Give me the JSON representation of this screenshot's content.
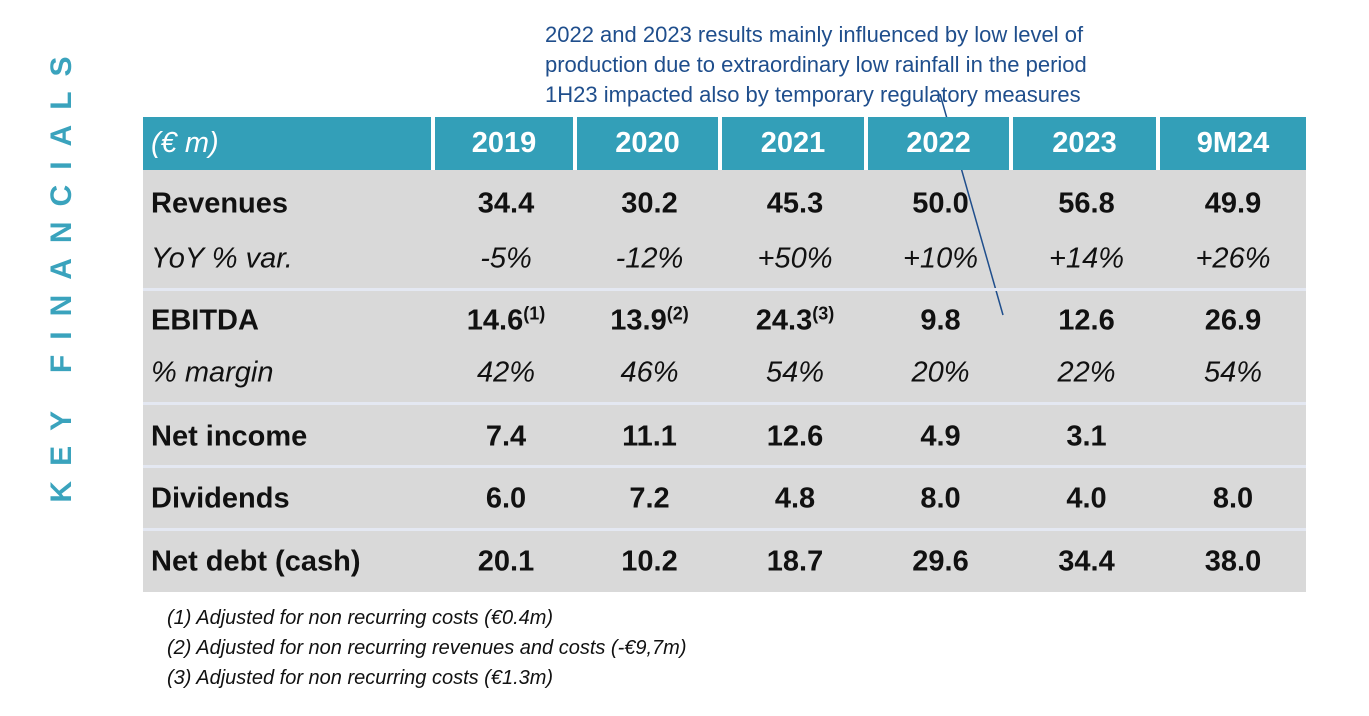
{
  "side_title": "KEY FINANCIALS",
  "annotation": [
    "2022 and 2023 results mainly influenced by low level of",
    "production due to extraordinary low rainfall in the period",
    "1H23 impacted also by temporary regulatory measures"
  ],
  "table": {
    "header": [
      "(€ m)",
      "2019",
      "2020",
      "2021",
      "2022",
      "2023",
      "9M24"
    ],
    "rows": [
      [
        "Revenues",
        "34.4",
        "30.2",
        "45.3",
        "50.0",
        "56.8",
        "49.9"
      ],
      [
        "YoY % var.",
        "-5%",
        "-12%",
        "+50%",
        "+10%",
        "+14%",
        "+26%"
      ],
      [
        "EBITDA",
        {
          "value": "14.6",
          "note": "(1)"
        },
        {
          "value": "13.9",
          "note": "(2)"
        },
        {
          "value": "24.3",
          "note": "(3)"
        },
        "9.8",
        "12.6",
        "26.9"
      ],
      [
        "% margin",
        "42%",
        "46%",
        "54%",
        "20%",
        "22%",
        "54%"
      ],
      [
        "Net income",
        "7.4",
        "11.1",
        "12.6",
        "4.9",
        "3.1",
        null
      ],
      [
        "Dividends",
        "6.0",
        "7.2",
        "4.8",
        "8.0",
        "4.0",
        "8.0"
      ],
      [
        "Net debt (cash)",
        "20.1",
        "10.2",
        "18.7",
        "29.6",
        "34.4",
        "38.0"
      ]
    ]
  },
  "footnotes": [
    "(1) Adjusted for non recurring costs (€0.4m)",
    "(2) Adjusted for non recurring revenues and costs (-€9,7m)",
    "(3) Adjusted for non recurring costs (€1.3m)"
  ]
}
